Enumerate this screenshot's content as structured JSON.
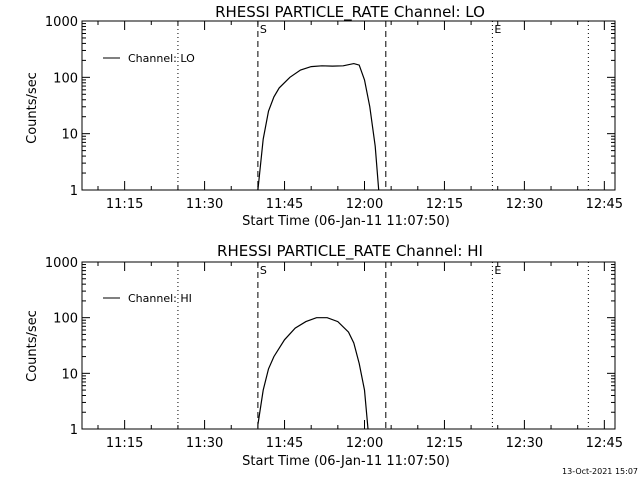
{
  "chart_data": [
    {
      "type": "line",
      "title": "RHESSI PARTICLE_RATE Channel: LO",
      "xlabel": "Start Time (06-Jan-11 11:07:50)",
      "ylabel": "Counts/sec",
      "yscale": "log",
      "ylim": [
        1,
        1000
      ],
      "xlim": [
        "11:07",
        "12:47"
      ],
      "x_tick_labels": [
        "11:15",
        "11:30",
        "11:45",
        "12:00",
        "12:15",
        "12:30",
        "12:45"
      ],
      "y_tick_labels": [
        "1",
        "10",
        "100",
        "1000"
      ],
      "legend": {
        "position": "top-left",
        "entries": [
          "Channel: LO"
        ]
      },
      "vlines": [
        {
          "x": "11:25",
          "style": "dotted"
        },
        {
          "x": "11:40",
          "style": "dashed",
          "label": "S"
        },
        {
          "x": "12:04",
          "style": "dashed"
        },
        {
          "x": "12:24",
          "style": "dotted",
          "label": "E"
        },
        {
          "x": "12:42",
          "style": "dotted"
        }
      ],
      "series": [
        {
          "name": "Channel: LO",
          "x": [
            "11:40:00",
            "11:41:00",
            "11:42:00",
            "11:43:00",
            "11:44:00",
            "11:46:00",
            "11:48:00",
            "11:50:00",
            "11:52:00",
            "11:54:00",
            "11:56:00",
            "11:58:00",
            "11:59:00",
            "12:00:00",
            "12:01:00",
            "12:02:00",
            "12:02:40"
          ],
          "values": [
            1,
            8,
            25,
            45,
            65,
            100,
            135,
            155,
            160,
            158,
            160,
            175,
            165,
            90,
            30,
            6,
            1
          ]
        }
      ]
    },
    {
      "type": "line",
      "title": "RHESSI PARTICLE_RATE Channel: HI",
      "xlabel": "Start Time (06-Jan-11 11:07:50)",
      "ylabel": "Counts/sec",
      "yscale": "log",
      "ylim": [
        1,
        1000
      ],
      "xlim": [
        "11:07",
        "12:47"
      ],
      "x_tick_labels": [
        "11:15",
        "11:30",
        "11:45",
        "12:00",
        "12:15",
        "12:30",
        "12:45"
      ],
      "y_tick_labels": [
        "1",
        "10",
        "100",
        "1000"
      ],
      "legend": {
        "position": "top-left",
        "entries": [
          "Channel: HI"
        ]
      },
      "vlines": [
        {
          "x": "11:25",
          "style": "dotted"
        },
        {
          "x": "11:40",
          "style": "dashed",
          "label": "S"
        },
        {
          "x": "12:04",
          "style": "dashed"
        },
        {
          "x": "12:24",
          "style": "dotted",
          "label": "E"
        },
        {
          "x": "12:42",
          "style": "dotted"
        }
      ],
      "series": [
        {
          "name": "Channel: HI",
          "x": [
            "11:40:00",
            "11:41:00",
            "11:42:00",
            "11:43:00",
            "11:45:00",
            "11:47:00",
            "11:49:00",
            "11:51:00",
            "11:53:00",
            "11:55:00",
            "11:57:00",
            "11:58:00",
            "11:59:00",
            "12:00:00",
            "12:00:40"
          ],
          "values": [
            1.2,
            5,
            12,
            20,
            40,
            65,
            85,
            100,
            100,
            85,
            55,
            35,
            15,
            5,
            1
          ]
        }
      ]
    }
  ],
  "footer": {
    "timestamp": "13-Oct-2021 15:07"
  }
}
